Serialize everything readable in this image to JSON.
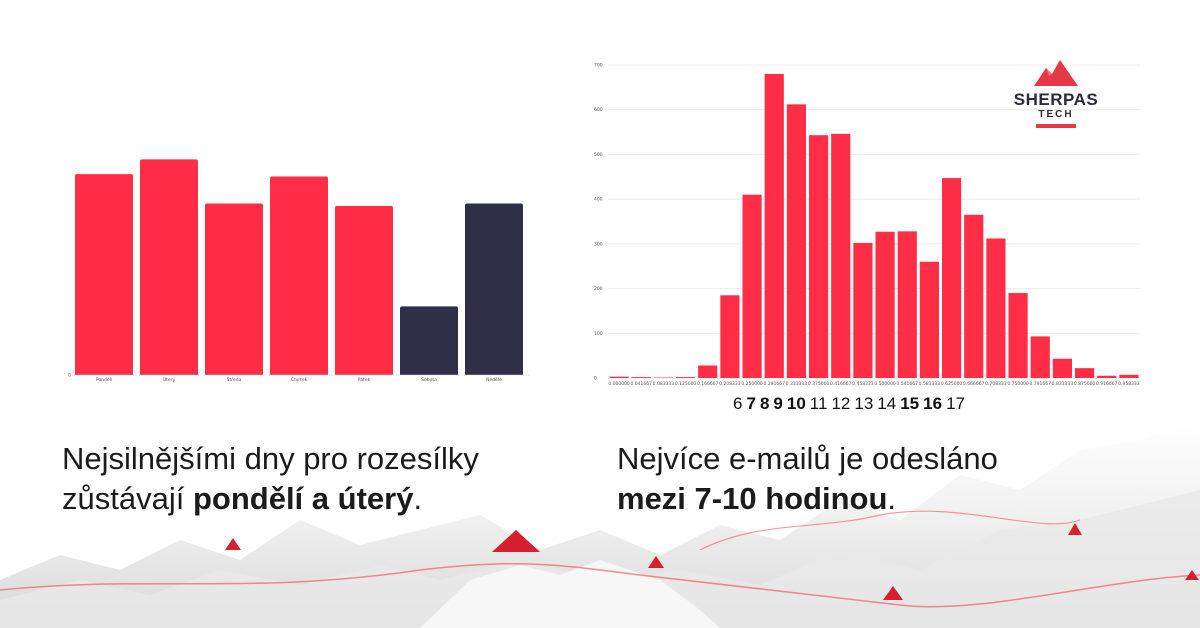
{
  "colors": {
    "accent": "#ff2d46",
    "dark": "#2f3047",
    "text": "#1b1b1b",
    "grid": "#e4e4e4"
  },
  "logo": {
    "name": "SHERPAS",
    "sub": "TECH"
  },
  "chart_data": [
    {
      "type": "bar",
      "categories": [
        "Pondělí",
        "Úterý",
        "Středa",
        "Čtvrtek",
        "Pátek",
        "Sobota",
        "Neděle"
      ],
      "values": [
        0.82,
        0.88,
        0.7,
        0.81,
        0.69,
        0.28,
        0.7
      ],
      "bar_colors": [
        "#ff2d46",
        "#ff2d46",
        "#ff2d46",
        "#ff2d46",
        "#ff2d46",
        "#2f3047",
        "#2f3047"
      ],
      "ylim": [
        0,
        1
      ],
      "y_zero_label": "0",
      "grid": false,
      "title": "",
      "xlabel": "",
      "ylabel": ""
    },
    {
      "type": "bar",
      "categories": [
        "0.000000",
        "0.041667",
        "0.083333",
        "0.125000",
        "0.166667",
        "0.208333",
        "0.250000",
        "0.291667",
        "0.333333",
        "0.375000",
        "0.416667",
        "0.458333",
        "0.500000",
        "0.541667",
        "0.583333",
        "0.625000",
        "0.666667",
        "0.708333",
        "0.750000",
        "0.791667",
        "0.833333",
        "0.875000",
        "0.916667",
        "0.958333"
      ],
      "values": [
        3,
        2,
        1,
        2,
        28,
        185,
        410,
        680,
        612,
        543,
        546,
        302,
        327,
        328,
        260,
        447,
        365,
        312,
        190,
        93,
        43,
        22,
        5,
        7
      ],
      "yticks": [
        0,
        100,
        200,
        300,
        400,
        500,
        600,
        700
      ],
      "ytick_labels": [
        "0",
        "100",
        "200",
        "300",
        "400",
        "500",
        "600",
        "700"
      ],
      "ylim": [
        0,
        700
      ],
      "grid": true,
      "title": "",
      "xlabel": "",
      "ylabel": ""
    }
  ],
  "hour_labels": [
    {
      "text": "6",
      "bold": false
    },
    {
      "text": "7",
      "bold": true
    },
    {
      "text": "8",
      "bold": true
    },
    {
      "text": "9",
      "bold": true
    },
    {
      "text": "10",
      "bold": true
    },
    {
      "text": "11",
      "bold": false
    },
    {
      "text": "12",
      "bold": false
    },
    {
      "text": "13",
      "bold": false
    },
    {
      "text": "14",
      "bold": false
    },
    {
      "text": "15",
      "bold": true
    },
    {
      "text": "16",
      "bold": true
    },
    {
      "text": "17",
      "bold": false
    }
  ],
  "captions": {
    "left": {
      "line1": "Nejsilnějšími dny pro rozesílky",
      "line2_pre": "zůstávají ",
      "line2_bold": "pondělí a úterý",
      "line2_post": "."
    },
    "right": {
      "line1": "Nejvíce e-mailů je odesláno",
      "line2_bold": "mezi 7-10 hodinou",
      "line2_post": "."
    }
  }
}
